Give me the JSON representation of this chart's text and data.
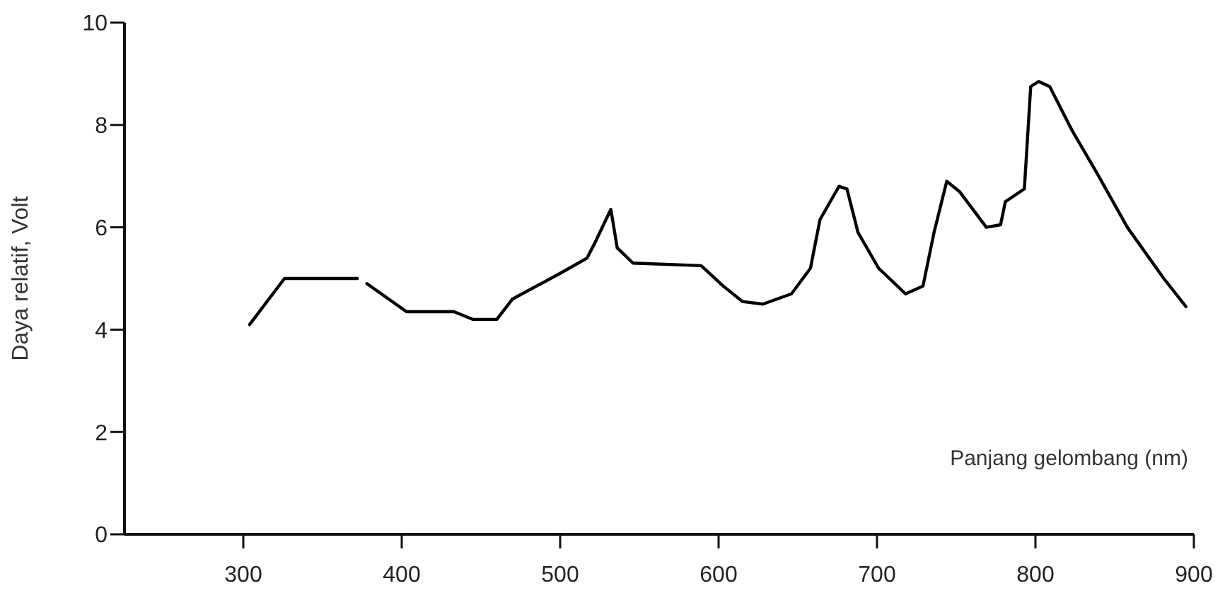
{
  "chart_data": {
    "type": "line",
    "xlabel": "Panjang gelombang (nm)",
    "ylabel": "Daya relatif, Volt",
    "xlim": [
      225,
      900
    ],
    "xticks": [
      300,
      400,
      500,
      600,
      700,
      800,
      900
    ],
    "ylim": [
      0,
      10
    ],
    "yticks": [
      0,
      2,
      4,
      6,
      8,
      10
    ],
    "grid": false,
    "legend": false,
    "marker": "none",
    "line_style": "solid",
    "x": [
      304,
      326,
      372,
      375,
      378,
      403,
      433,
      445,
      460,
      470,
      500,
      517,
      522,
      532,
      536,
      546,
      589,
      603,
      615,
      628,
      646,
      658,
      664,
      676,
      681,
      688,
      701,
      718,
      729,
      736,
      744,
      752,
      769,
      778,
      781,
      793,
      797,
      802,
      809,
      823,
      839,
      858,
      881,
      895
    ],
    "series": [
      {
        "color": "#000000",
        "values": [
          4.1,
          5.0,
          5.0,
          null,
          4.9,
          4.35,
          4.35,
          4.2,
          4.2,
          4.6,
          5.1,
          5.4,
          5.7,
          6.35,
          5.6,
          5.3,
          5.25,
          4.85,
          4.55,
          4.5,
          4.7,
          5.2,
          6.15,
          6.8,
          6.75,
          5.9,
          5.2,
          4.7,
          4.85,
          5.9,
          6.9,
          6.7,
          6.0,
          6.05,
          6.5,
          6.75,
          8.75,
          8.85,
          8.75,
          7.9,
          7.05,
          6.0,
          5.0,
          4.45
        ]
      }
    ]
  }
}
